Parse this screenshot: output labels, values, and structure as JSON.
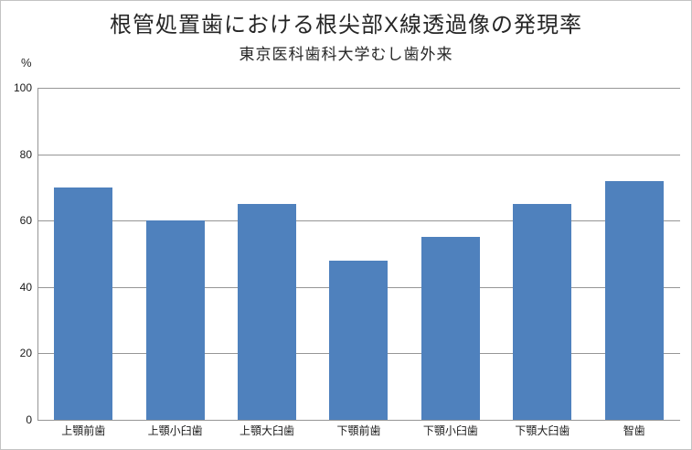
{
  "chart": {
    "title": "根管処置歯における根尖部X線透過像の発現率",
    "subtitle": "東京医科歯科大学むし歯外来",
    "y_unit_label": "%"
  },
  "chart_data": {
    "type": "bar",
    "title": "根管処置歯における根尖部X線透過像の発現率",
    "subtitle": "東京医科歯科大学むし歯外来",
    "categories": [
      "上顎前歯",
      "上顎小臼歯",
      "上顎大臼歯",
      "下顎前歯",
      "下顎小臼歯",
      "下顎大臼歯",
      "智歯"
    ],
    "values": [
      70,
      60,
      65,
      48,
      55,
      65,
      72
    ],
    "xlabel": "",
    "ylabel": "%",
    "ylim": [
      0,
      100
    ],
    "yticks": [
      0,
      20,
      40,
      60,
      80,
      100
    ],
    "grid": true,
    "legend": false,
    "colors": {
      "bar": "#4F81BD",
      "gridline": "#969696",
      "axis": "#969696",
      "text": "#262626",
      "frame_border": "#C3C3C3",
      "background": "#FFFFFF"
    }
  }
}
